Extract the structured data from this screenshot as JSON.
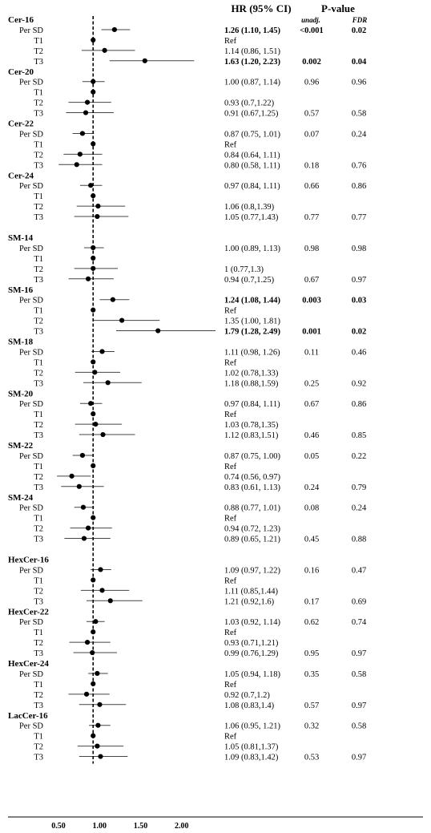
{
  "chart_data": {
    "type": "forest",
    "header_hr": "HR (95% CI)",
    "header_p": "P-value",
    "header_unadj": "unadj.",
    "header_fdr": "FDR",
    "x_ticks": [
      {
        "value": 0.5,
        "label": "0.50"
      },
      {
        "value": 1.0,
        "label": "1.00"
      },
      {
        "value": 1.5,
        "label": "1.50"
      },
      {
        "value": 2.0,
        "label": "2.00"
      }
    ],
    "xlim": [
      0.5,
      2.23
    ],
    "reference_line": 1.0,
    "groups": [
      {
        "name": "Cer-16",
        "rows": [
          {
            "label": "Per SD",
            "hr": 1.26,
            "lo": 1.1,
            "hi": 1.45,
            "text": "1.26 (1.10, 1.45)",
            "p": "<0.001",
            "fdr": "0.02",
            "bold": true
          },
          {
            "label": "T1",
            "hr": 1.0,
            "lo": 1.0,
            "hi": 1.0,
            "text": "Ref",
            "p": "",
            "fdr": "",
            "bold": false
          },
          {
            "label": "T2",
            "hr": 1.14,
            "lo": 0.86,
            "hi": 1.51,
            "text": "1.14 (0.86, 1.51)",
            "p": "",
            "fdr": "",
            "bold": false
          },
          {
            "label": "T3",
            "hr": 1.63,
            "lo": 1.2,
            "hi": 2.23,
            "text": "1.63 (1.20, 2.23)",
            "p": "0.002",
            "fdr": "0.04",
            "bold": true
          }
        ]
      },
      {
        "name": "Cer-20",
        "rows": [
          {
            "label": "Per SD",
            "hr": 1.0,
            "lo": 0.87,
            "hi": 1.14,
            "text": "1.00 (0.87, 1.14)",
            "p": "0.96",
            "fdr": "0.96",
            "bold": false
          },
          {
            "label": "T1",
            "hr": 1.0,
            "lo": 1.0,
            "hi": 1.0,
            "text": "",
            "p": "",
            "fdr": "",
            "bold": false
          },
          {
            "label": "T2",
            "hr": 0.93,
            "lo": 0.7,
            "hi": 1.22,
            "text": "0.93 (0.7,1.22)",
            "p": "",
            "fdr": "",
            "bold": false
          },
          {
            "label": "T3",
            "hr": 0.91,
            "lo": 0.67,
            "hi": 1.25,
            "text": "0.91 (0.67,1.25)",
            "p": "0.57",
            "fdr": "0.58",
            "bold": false
          }
        ]
      },
      {
        "name": "Cer-22",
        "rows": [
          {
            "label": "Per SD",
            "hr": 0.87,
            "lo": 0.75,
            "hi": 1.01,
            "text": "0.87 (0.75, 1.01)",
            "p": "0.07",
            "fdr": "0.24",
            "bold": false
          },
          {
            "label": "T1",
            "hr": 1.0,
            "lo": 1.0,
            "hi": 1.0,
            "text": "Ref",
            "p": "",
            "fdr": "",
            "bold": false
          },
          {
            "label": "T2",
            "hr": 0.84,
            "lo": 0.64,
            "hi": 1.11,
            "text": "0.84 (0.64, 1.11)",
            "p": "",
            "fdr": "",
            "bold": false
          },
          {
            "label": "T3",
            "hr": 0.8,
            "lo": 0.58,
            "hi": 1.11,
            "text": "0.80 (0.58, 1.11)",
            "p": "0.18",
            "fdr": "0.76",
            "bold": false
          }
        ]
      },
      {
        "name": "Cer-24",
        "rows": [
          {
            "label": "Per SD",
            "hr": 0.97,
            "lo": 0.84,
            "hi": 1.11,
            "text": "0.97 (0.84, 1.11)",
            "p": "0.66",
            "fdr": "0.86",
            "bold": false
          },
          {
            "label": "T1",
            "hr": 1.0,
            "lo": 1.0,
            "hi": 1.0,
            "text": "",
            "p": "",
            "fdr": "",
            "bold": false
          },
          {
            "label": "T2",
            "hr": 1.06,
            "lo": 0.8,
            "hi": 1.39,
            "text": "1.06 (0.8,1.39)",
            "p": "",
            "fdr": "",
            "bold": false
          },
          {
            "label": "T3",
            "hr": 1.05,
            "lo": 0.77,
            "hi": 1.43,
            "text": "1.05 (0.77,1.43)",
            "p": "0.77",
            "fdr": "0.77",
            "bold": false
          }
        ]
      },
      {
        "name": "SM-14",
        "rows": [
          {
            "label": "Per SD",
            "hr": 1.0,
            "lo": 0.89,
            "hi": 1.13,
            "text": "1.00 (0.89, 1.13)",
            "p": "0.98",
            "fdr": "0.98",
            "bold": false
          },
          {
            "label": "T1",
            "hr": 1.0,
            "lo": 1.0,
            "hi": 1.0,
            "text": "",
            "p": "",
            "fdr": "",
            "bold": false
          },
          {
            "label": "T2",
            "hr": 1.0,
            "lo": 0.77,
            "hi": 1.3,
            "text": "1 (0.77,1.3)",
            "p": "",
            "fdr": "",
            "bold": false
          },
          {
            "label": "T3",
            "hr": 0.94,
            "lo": 0.7,
            "hi": 1.25,
            "text": "0.94 (0.7,1.25)",
            "p": "0.67",
            "fdr": "0.97",
            "bold": false
          }
        ]
      },
      {
        "name": "SM-16",
        "rows": [
          {
            "label": "Per SD",
            "hr": 1.24,
            "lo": 1.08,
            "hi": 1.44,
            "text": "1.24 (1.08, 1.44)",
            "p": "0.003",
            "fdr": "0.03",
            "bold": true
          },
          {
            "label": "T1",
            "hr": 1.0,
            "lo": 1.0,
            "hi": 1.0,
            "text": "Ref",
            "p": "",
            "fdr": "",
            "bold": false
          },
          {
            "label": "T2",
            "hr": 1.35,
            "lo": 1.0,
            "hi": 1.81,
            "text": "1.35 (1.00, 1.81)",
            "p": "",
            "fdr": "",
            "bold": false
          },
          {
            "label": "T3",
            "hr": 1.79,
            "lo": 1.28,
            "hi": 2.49,
            "text": "1.79 (1.28, 2.49)",
            "p": "0.001",
            "fdr": "0.02",
            "bold": true
          }
        ]
      },
      {
        "name": "SM-18",
        "rows": [
          {
            "label": "Per SD",
            "hr": 1.11,
            "lo": 0.98,
            "hi": 1.26,
            "text": "1.11 (0.98, 1.26)",
            "p": "0.11",
            "fdr": "0.46",
            "bold": false
          },
          {
            "label": "T1",
            "hr": 1.0,
            "lo": 1.0,
            "hi": 1.0,
            "text": "Ref",
            "p": "",
            "fdr": "",
            "bold": false
          },
          {
            "label": "T2",
            "hr": 1.02,
            "lo": 0.78,
            "hi": 1.33,
            "text": "1.02 (0.78,1.33)",
            "p": "",
            "fdr": "",
            "bold": false
          },
          {
            "label": "T3",
            "hr": 1.18,
            "lo": 0.88,
            "hi": 1.59,
            "text": "1.18 (0.88,1.59)",
            "p": "0.25",
            "fdr": "0.92",
            "bold": false
          }
        ]
      },
      {
        "name": "SM-20",
        "rows": [
          {
            "label": "Per SD",
            "hr": 0.97,
            "lo": 0.84,
            "hi": 1.11,
            "text": "0.97 (0.84, 1.11)",
            "p": "0.67",
            "fdr": "0.86",
            "bold": false
          },
          {
            "label": "T1",
            "hr": 1.0,
            "lo": 1.0,
            "hi": 1.0,
            "text": "Ref",
            "p": "",
            "fdr": "",
            "bold": false
          },
          {
            "label": "T2",
            "hr": 1.03,
            "lo": 0.78,
            "hi": 1.35,
            "text": "1.03 (0.78,1.35)",
            "p": "",
            "fdr": "",
            "bold": false
          },
          {
            "label": "T3",
            "hr": 1.12,
            "lo": 0.83,
            "hi": 1.51,
            "text": "1.12 (0.83,1.51)",
            "p": "0.46",
            "fdr": "0.85",
            "bold": false
          }
        ]
      },
      {
        "name": "SM-22",
        "rows": [
          {
            "label": "Per SD",
            "hr": 0.87,
            "lo": 0.75,
            "hi": 1.0,
            "text": "0.87 (0.75, 1.00)",
            "p": "0.05",
            "fdr": "0.22",
            "bold": false
          },
          {
            "label": "T1",
            "hr": 1.0,
            "lo": 1.0,
            "hi": 1.0,
            "text": "Ref",
            "p": "",
            "fdr": "",
            "bold": false
          },
          {
            "label": "T2",
            "hr": 0.74,
            "lo": 0.56,
            "hi": 0.97,
            "text": "0.74 (0.56, 0.97)",
            "p": "",
            "fdr": "",
            "bold": false
          },
          {
            "label": "T3",
            "hr": 0.83,
            "lo": 0.61,
            "hi": 1.13,
            "text": "0.83 (0.61, 1.13)",
            "p": "0.24",
            "fdr": "0.79",
            "bold": false
          }
        ]
      },
      {
        "name": "SM-24",
        "rows": [
          {
            "label": "Per SD",
            "hr": 0.88,
            "lo": 0.77,
            "hi": 1.01,
            "text": "0.88 (0.77, 1.01)",
            "p": "0.08",
            "fdr": "0.24",
            "bold": false
          },
          {
            "label": "T1",
            "hr": 1.0,
            "lo": 1.0,
            "hi": 1.0,
            "text": "Ref",
            "p": "",
            "fdr": "",
            "bold": false
          },
          {
            "label": "T2",
            "hr": 0.94,
            "lo": 0.72,
            "hi": 1.23,
            "text": "0.94 (0.72, 1.23)",
            "p": "",
            "fdr": "",
            "bold": false
          },
          {
            "label": "T3",
            "hr": 0.89,
            "lo": 0.65,
            "hi": 1.21,
            "text": "0.89 (0.65, 1.21)",
            "p": "0.45",
            "fdr": "0.88",
            "bold": false
          }
        ]
      },
      {
        "name": "HexCer-16",
        "rows": [
          {
            "label": "Per SD",
            "hr": 1.09,
            "lo": 0.97,
            "hi": 1.22,
            "text": "1.09 (0.97, 1.22)",
            "p": "0.16",
            "fdr": "0.47",
            "bold": false
          },
          {
            "label": "T1",
            "hr": 1.0,
            "lo": 1.0,
            "hi": 1.0,
            "text": "Ref",
            "p": "",
            "fdr": "",
            "bold": false
          },
          {
            "label": "T2",
            "hr": 1.11,
            "lo": 0.85,
            "hi": 1.44,
            "text": "1.11 (0.85,1.44)",
            "p": "",
            "fdr": "",
            "bold": false
          },
          {
            "label": "T3",
            "hr": 1.21,
            "lo": 0.92,
            "hi": 1.6,
            "text": "1.21 (0.92,1.6)",
            "p": "0.17",
            "fdr": "0.69",
            "bold": false
          }
        ]
      },
      {
        "name": "HexCer-22",
        "rows": [
          {
            "label": "Per SD",
            "hr": 1.03,
            "lo": 0.92,
            "hi": 1.14,
            "text": "1.03 (0.92, 1.14)",
            "p": "0.62",
            "fdr": "0.74",
            "bold": false
          },
          {
            "label": "T1",
            "hr": 1.0,
            "lo": 1.0,
            "hi": 1.0,
            "text": "Ref",
            "p": "",
            "fdr": "",
            "bold": false
          },
          {
            "label": "T2",
            "hr": 0.93,
            "lo": 0.71,
            "hi": 1.21,
            "text": "0.93 (0.71,1.21)",
            "p": "",
            "fdr": "",
            "bold": false
          },
          {
            "label": "T3",
            "hr": 0.99,
            "lo": 0.76,
            "hi": 1.29,
            "text": "0.99 (0.76,1.29)",
            "p": "0.95",
            "fdr": "0.97",
            "bold": false
          }
        ]
      },
      {
        "name": "HexCer-24",
        "rows": [
          {
            "label": "Per SD",
            "hr": 1.05,
            "lo": 0.94,
            "hi": 1.18,
            "text": "1.05 (0.94, 1.18)",
            "p": "0.35",
            "fdr": "0.58",
            "bold": false
          },
          {
            "label": "T1",
            "hr": 1.0,
            "lo": 1.0,
            "hi": 1.0,
            "text": "Ref",
            "p": "",
            "fdr": "",
            "bold": false
          },
          {
            "label": "T2",
            "hr": 0.92,
            "lo": 0.7,
            "hi": 1.2,
            "text": "0.92 (0.7,1.2)",
            "p": "",
            "fdr": "",
            "bold": false
          },
          {
            "label": "T3",
            "hr": 1.08,
            "lo": 0.83,
            "hi": 1.4,
            "text": "1.08 (0.83,1.4)",
            "p": "0.57",
            "fdr": "0.97",
            "bold": false
          }
        ]
      },
      {
        "name": "LacCer-16",
        "rows": [
          {
            "label": "Per SD",
            "hr": 1.06,
            "lo": 0.95,
            "hi": 1.21,
            "text": "1.06 (0.95, 1.21)",
            "p": "0.32",
            "fdr": "0.58",
            "bold": false
          },
          {
            "label": "T1",
            "hr": 1.0,
            "lo": 1.0,
            "hi": 1.0,
            "text": "Ref",
            "p": "",
            "fdr": "",
            "bold": false
          },
          {
            "label": "T2",
            "hr": 1.05,
            "lo": 0.81,
            "hi": 1.37,
            "text": "1.05 (0.81,1.37)",
            "p": "",
            "fdr": "",
            "bold": false
          },
          {
            "label": "T3",
            "hr": 1.09,
            "lo": 0.83,
            "hi": 1.42,
            "text": "1.09 (0.83,1.42)",
            "p": "0.53",
            "fdr": "0.97",
            "bold": false
          }
        ]
      }
    ]
  }
}
